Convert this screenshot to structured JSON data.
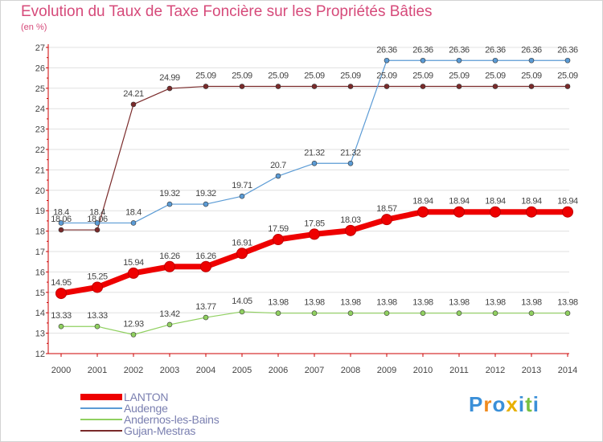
{
  "title": "Evolution du Taux de Taxe Foncière sur les Propriétés Bâties",
  "unit_label": "(en %)",
  "logo_text": "Proxiti",
  "colors": {
    "title": "#d64a7a",
    "grid_axis": "#cc0000",
    "gridline": "#e0e0e0",
    "labels": "#444444"
  },
  "chart_data": {
    "type": "line",
    "title": "Evolution du Taux de Taxe Foncière sur les Propriétés Bâties",
    "ylabel": "(en %)",
    "xlabel": "",
    "ylim": [
      12,
      27
    ],
    "yticks": [
      "12",
      "13",
      "14",
      "15",
      "16",
      "17",
      "18",
      "19",
      "20",
      "21",
      "22",
      "23",
      "24",
      "25",
      "26",
      "27"
    ],
    "categories": [
      "2000",
      "2001",
      "2002",
      "2003",
      "2004",
      "2005",
      "2006",
      "2007",
      "2008",
      "2009",
      "2010",
      "2011",
      "2012",
      "2013",
      "2014"
    ],
    "series": [
      {
        "name": "LANTON",
        "color": "#ee0000",
        "values": [
          14.95,
          15.25,
          15.94,
          16.26,
          16.26,
          16.91,
          17.59,
          17.85,
          18.03,
          18.57,
          18.94,
          18.94,
          18.94,
          18.94,
          18.94
        ],
        "labels": [
          "14.95",
          "15.25",
          "15.94",
          "16.26",
          "16.26",
          "16.91",
          "17.59",
          "17.85",
          "18.03",
          "18.57",
          "18.94",
          "18.94",
          "18.94",
          "18.94",
          "18.94"
        ]
      },
      {
        "name": "Audenge",
        "color": "#5b9bd5",
        "values": [
          18.4,
          18.4,
          18.4,
          19.32,
          19.32,
          19.71,
          20.7,
          21.32,
          21.32,
          26.36,
          26.36,
          26.36,
          26.36,
          26.36,
          26.36
        ],
        "labels": [
          "18.4",
          "18.4",
          "18.4",
          "19.32",
          "19.32",
          "19.71",
          "20.7",
          "21.32",
          "21.32",
          "26.36",
          "26.36",
          "26.36",
          "26.36",
          "26.36",
          "26.36"
        ]
      },
      {
        "name": "Andernos-les-Bains",
        "color": "#90d060",
        "values": [
          13.33,
          13.33,
          12.93,
          13.42,
          13.77,
          14.05,
          13.98,
          13.98,
          13.98,
          13.98,
          13.98,
          13.98,
          13.98,
          13.98,
          13.98
        ],
        "labels": [
          "13.33",
          "13.33",
          "12.93",
          "13.42",
          "13.77",
          "14.05",
          "13.98",
          "13.98",
          "13.98",
          "13.98",
          "13.98",
          "13.98",
          "13.98",
          "13.98",
          "13.98"
        ]
      },
      {
        "name": "Gujan-Mestras",
        "color": "#7a2a2a",
        "values": [
          18.06,
          18.06,
          24.21,
          24.99,
          25.09,
          25.09,
          25.09,
          25.09,
          25.09,
          25.09,
          25.09,
          25.09,
          25.09,
          25.09,
          25.09
        ],
        "labels": [
          "18.06",
          "18.06",
          "24.21",
          "24.99",
          "25.09",
          "25.09",
          "25.09",
          "25.09",
          "25.09",
          "25.09",
          "25.09",
          "25.09",
          "25.09",
          "25.09",
          "25.09"
        ]
      }
    ],
    "legend_position": "bottom-left",
    "grid": true
  }
}
